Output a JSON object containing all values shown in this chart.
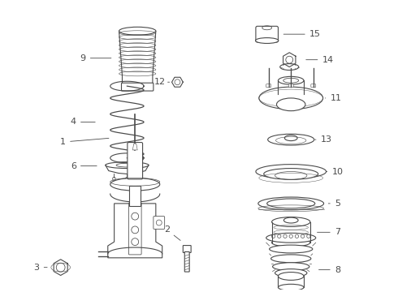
{
  "bg_color": "#ffffff",
  "line_color": "#4a4a4a",
  "label_color": "#1a1a1a",
  "figsize": [
    4.9,
    3.6
  ],
  "dpi": 100,
  "lw": 0.8
}
